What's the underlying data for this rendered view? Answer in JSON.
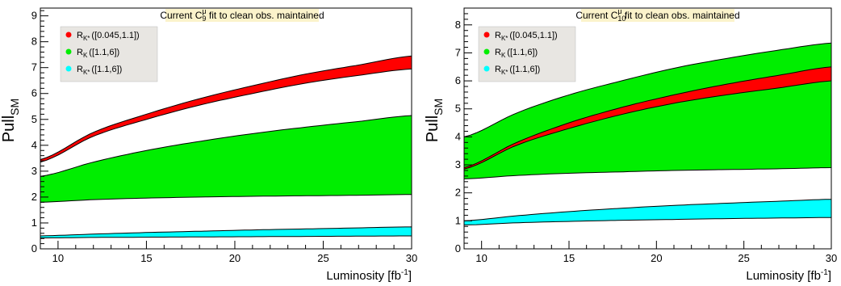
{
  "chart_data": [
    {
      "type": "area",
      "title_pre": "Current C",
      "title_sup": "μ",
      "title_sub": "9",
      "title_post": " fit to clean obs. maintained",
      "xlabel": "Luminosity [fb",
      "xlabel_sup": "-1",
      "xlabel_post": "]",
      "ylabel": "Pull",
      "ylabel_sub": "SM",
      "xlim": [
        9,
        30
      ],
      "ylim": [
        0,
        9.3
      ],
      "xticks": [
        10,
        15,
        20,
        25,
        30
      ],
      "yticks": [
        0,
        1,
        2,
        3,
        4,
        5,
        6,
        7,
        8,
        9
      ],
      "legend_position": "top-left",
      "x": [
        9,
        12,
        15,
        18,
        21,
        24,
        27,
        30
      ],
      "series": [
        {
          "name": "R",
          "name_sub": "K",
          "name_range": "([1.1,6])",
          "color": "#00ee00",
          "lower": [
            1.8,
            1.9,
            1.96,
            2.0,
            2.03,
            2.05,
            2.07,
            2.1
          ],
          "upper": [
            2.8,
            3.35,
            3.8,
            4.15,
            4.45,
            4.7,
            4.92,
            5.15
          ]
        },
        {
          "name": "R",
          "name_sub": "K*",
          "name_range": "([1.1,6])",
          "color": "#00ffff",
          "lower": [
            0.42,
            0.44,
            0.45,
            0.46,
            0.47,
            0.48,
            0.49,
            0.5
          ],
          "upper": [
            0.5,
            0.57,
            0.63,
            0.68,
            0.73,
            0.77,
            0.81,
            0.85
          ]
        },
        {
          "name": "R",
          "name_sub": "K*",
          "name_range": "([0.045,1.1])",
          "color": "#ff0000",
          "lower": [
            3.35,
            4.35,
            5.0,
            5.55,
            6.0,
            6.4,
            6.7,
            6.95
          ],
          "upper": [
            3.45,
            4.5,
            5.2,
            5.8,
            6.3,
            6.75,
            7.1,
            7.45
          ]
        }
      ]
    },
    {
      "type": "area",
      "title_pre": "Current C",
      "title_sup": "μ",
      "title_sub": "10",
      "title_post": " fit to clean obs. maintained",
      "xlabel": "Luminosity [fb",
      "xlabel_sup": "-1",
      "xlabel_post": "]",
      "ylabel": "Pull",
      "ylabel_sub": "SM",
      "xlim": [
        9,
        30
      ],
      "ylim": [
        0,
        8.6
      ],
      "xticks": [
        10,
        15,
        20,
        25,
        30
      ],
      "yticks": [
        0,
        1,
        2,
        3,
        4,
        5,
        6,
        7,
        8
      ],
      "legend_position": "top-left",
      "x": [
        9,
        12,
        15,
        18,
        21,
        24,
        27,
        30
      ],
      "series": [
        {
          "name": "R",
          "name_sub": "K",
          "name_range": "([1.1,6])",
          "color": "#00ee00",
          "lower": [
            2.5,
            2.62,
            2.7,
            2.75,
            2.8,
            2.83,
            2.86,
            2.9
          ],
          "upper": [
            4.0,
            4.85,
            5.5,
            6.0,
            6.45,
            6.8,
            7.1,
            7.35
          ]
        },
        {
          "name": "R",
          "name_sub": "K*",
          "name_range": "([1.1,6])",
          "color": "#00ffff",
          "lower": [
            0.85,
            0.93,
            0.98,
            1.02,
            1.05,
            1.08,
            1.1,
            1.12
          ],
          "upper": [
            1.0,
            1.18,
            1.33,
            1.45,
            1.55,
            1.63,
            1.7,
            1.77
          ]
        },
        {
          "name": "R",
          "name_sub": "K*",
          "name_range": "([0.045,1.1])",
          "color": "#ff0000",
          "lower": [
            2.85,
            3.7,
            4.3,
            4.8,
            5.2,
            5.5,
            5.75,
            6.0
          ],
          "upper": [
            2.9,
            3.8,
            4.5,
            5.05,
            5.5,
            5.88,
            6.2,
            6.5
          ]
        }
      ]
    }
  ]
}
